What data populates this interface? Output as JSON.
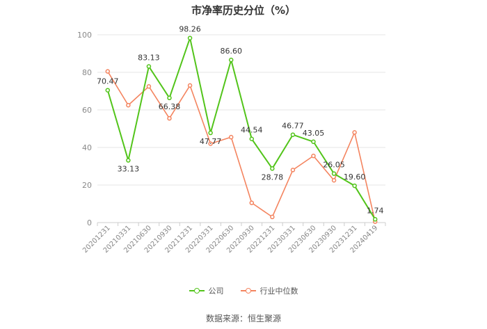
{
  "title": "市净率历史分位（%）",
  "chart_data": {
    "type": "line",
    "categories": [
      "20201231",
      "20210331",
      "20210630",
      "20210930",
      "20211231",
      "20220331",
      "20220630",
      "20220930",
      "20221231",
      "20230331",
      "20230630",
      "20230930",
      "20231231",
      "20240419"
    ],
    "ylim": [
      0,
      100
    ],
    "yticks": [
      0,
      20,
      40,
      60,
      80,
      100
    ],
    "grid": true,
    "legend_position": "bottom",
    "series": [
      {
        "name": "公司",
        "color": "#52c41a",
        "values": [
          70.47,
          33.13,
          83.13,
          66.38,
          98.26,
          47.77,
          86.6,
          44.54,
          28.78,
          46.77,
          43.05,
          26.05,
          19.6,
          1.74
        ],
        "labels": [
          "70.47",
          "33.13",
          "83.13",
          "66.38",
          "98.26",
          "47.77",
          "86.60",
          "44.54",
          "28.78",
          "46.77",
          "43.05",
          "26.05",
          "19.60",
          "1.74"
        ]
      },
      {
        "name": "行业中位数",
        "color": "#f4845f",
        "values": [
          80.5,
          62.5,
          72.5,
          55.5,
          73.0,
          42.0,
          45.5,
          10.5,
          3.0,
          28.0,
          35.5,
          22.5,
          48.0,
          0.5
        ]
      }
    ]
  },
  "source": "数据来源：恒生聚源"
}
